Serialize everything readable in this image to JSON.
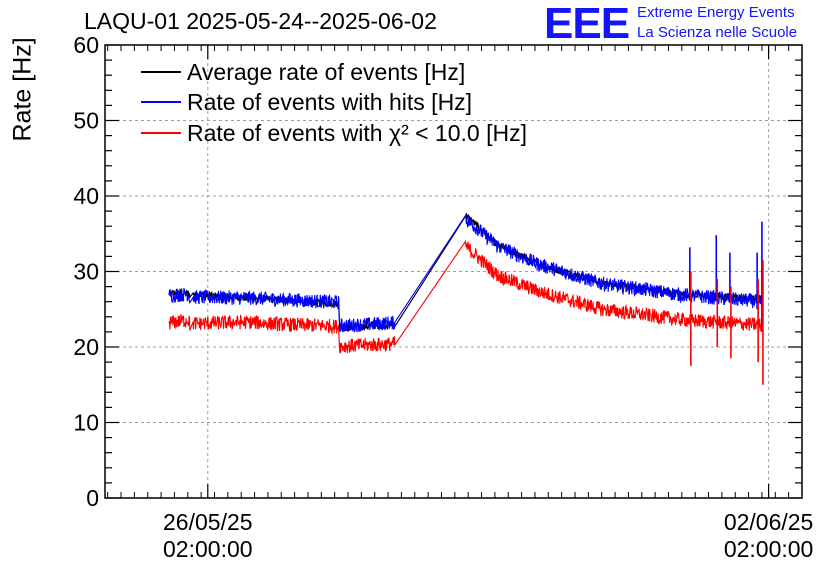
{
  "header": {
    "title": "LAQU-01 2025-05-24--2025-06-02",
    "logo_text": "EEE",
    "logo_line1": "Extreme Energy Events",
    "logo_line2": "La Scienza nelle Scuole",
    "logo_color": "#1414ff"
  },
  "chart_data": {
    "type": "line",
    "title": "LAQU-01 2025-05-24--2025-06-02",
    "ylabel": "Rate [Hz]",
    "xlabel": "",
    "ylim": [
      0,
      60
    ],
    "y_ticks": [
      "0",
      "10",
      "20",
      "30",
      "40",
      "50",
      "60"
    ],
    "x_unit": "days since 2025-05-24 00:00",
    "xlim": [
      0.8,
      9.5
    ],
    "x_ticks": [
      {
        "x": 2.083,
        "line1": "26/05/25",
        "line2": "02:00:00"
      },
      {
        "x": 9.083,
        "line1": "02/06/25",
        "line2": "02:00:00"
      }
    ],
    "grid": true,
    "legend_position": "top-left",
    "series": [
      {
        "name": "Average rate of events [Hz]",
        "color": "#000000",
        "noise": 0.5,
        "points": [
          [
            1.6,
            27.0
          ],
          [
            1.7,
            27.3
          ],
          [
            1.85,
            27.0
          ],
          [
            2.6,
            26.5
          ],
          [
            3.0,
            26.2
          ],
          [
            3.6,
            25.8
          ],
          [
            3.72,
            25.8
          ],
          [
            3.73,
            22.5
          ],
          [
            4.4,
            23.0
          ],
          [
            4.42,
            23.2
          ],
          [
            5.3,
            37.5
          ],
          [
            5.7,
            33.5
          ],
          [
            6.2,
            31.0
          ],
          [
            7.0,
            28.5
          ],
          [
            8.0,
            27.0
          ],
          [
            9.0,
            26.3
          ]
        ]
      },
      {
        "name": "Rate of events with hits [Hz]",
        "color": "#0000ff",
        "noise": 0.95,
        "points": [
          [
            1.6,
            26.8
          ],
          [
            1.85,
            27.0
          ],
          [
            1.86,
            26.0
          ],
          [
            1.9,
            26.6
          ],
          [
            2.6,
            26.5
          ],
          [
            3.0,
            26.3
          ],
          [
            3.6,
            26.0
          ],
          [
            3.72,
            25.9
          ],
          [
            3.73,
            22.8
          ],
          [
            4.4,
            23.2
          ],
          [
            4.42,
            23.3
          ],
          [
            5.3,
            37.0
          ],
          [
            5.7,
            33.4
          ],
          [
            6.2,
            31.0
          ],
          [
            7.0,
            28.4
          ],
          [
            8.0,
            26.9
          ],
          [
            9.0,
            26.0
          ]
        ]
      },
      {
        "name": "Rate of events with χ² < 10.0 [Hz]",
        "color": "#ff0000",
        "noise": 0.95,
        "points": [
          [
            1.6,
            23.2
          ],
          [
            1.85,
            23.6
          ],
          [
            1.86,
            22.7
          ],
          [
            1.9,
            23.1
          ],
          [
            2.6,
            23.3
          ],
          [
            3.0,
            23.0
          ],
          [
            3.6,
            22.8
          ],
          [
            3.72,
            22.7
          ],
          [
            3.73,
            20.1
          ],
          [
            4.4,
            20.4
          ],
          [
            4.42,
            20.6
          ],
          [
            5.3,
            33.4
          ],
          [
            5.7,
            29.5
          ],
          [
            6.2,
            27.4
          ],
          [
            7.0,
            25.0
          ],
          [
            8.0,
            23.6
          ],
          [
            9.0,
            22.9
          ]
        ]
      }
    ],
    "spikes": [
      {
        "x": 8.1,
        "blue": [
          27,
          33.2
        ],
        "red": [
          17.5,
          30
        ]
      },
      {
        "x": 8.43,
        "blue": [
          27,
          34.8
        ],
        "red": [
          20,
          29
        ]
      },
      {
        "x": 8.6,
        "blue": [
          26,
          32.5
        ],
        "red": [
          18.5,
          28
        ]
      },
      {
        "x": 8.94,
        "blue": [
          25,
          32.5
        ],
        "red": [
          18,
          29
        ]
      },
      {
        "x": 9.0,
        "blue": [
          22,
          36.6
        ],
        "red": [
          15,
          31.5
        ]
      }
    ],
    "legend": [
      {
        "label": "Average rate of events [Hz]",
        "color": "#000000"
      },
      {
        "label": "Rate of events with hits [Hz]",
        "color": "#0000ff"
      },
      {
        "label": "Rate of events with χ² < 10.0 [Hz]",
        "color": "#ff0000"
      }
    ]
  }
}
